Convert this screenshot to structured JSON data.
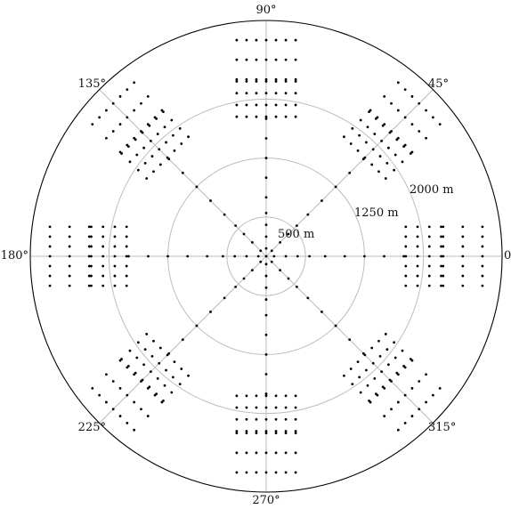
{
  "chart_data": {
    "type": "scatter",
    "coordinate_system": "polar",
    "title": "",
    "radial_unit": "m",
    "radial_max_m": 3000,
    "angle_tick_labels": [
      {
        "angle_deg": 0,
        "label": "0"
      },
      {
        "angle_deg": 45,
        "label": "45°"
      },
      {
        "angle_deg": 90,
        "label": "90°"
      },
      {
        "angle_deg": 135,
        "label": "135°"
      },
      {
        "angle_deg": 180,
        "label": "180°"
      },
      {
        "angle_deg": 225,
        "label": "225°"
      },
      {
        "angle_deg": 270,
        "label": "270°"
      },
      {
        "angle_deg": 315,
        "label": "315°"
      }
    ],
    "radial_circles": [
      {
        "radius_m": 500,
        "label": "500 m"
      },
      {
        "radius_m": 1250,
        "label": "1250 m"
      },
      {
        "radius_m": 2000,
        "label": "2000 m"
      }
    ],
    "grid": true,
    "angles_deg": [
      0,
      45,
      90,
      135,
      180,
      225,
      270,
      315
    ],
    "center_point": true,
    "spoke_points_radius_m": [
      100,
      250,
      400,
      550,
      750,
      1000,
      1250,
      1500,
      1750
    ],
    "grid_blocks": [
      {
        "center_radius_m": 2000,
        "along_offsets_m": [
          -225,
          -75,
          75,
          225
        ],
        "cross_offsets_m": [
          -375,
          -250,
          -125,
          0,
          125,
          250,
          375
        ]
      },
      {
        "center_radius_m": 2500,
        "along_offsets_m": [
          -250,
          0,
          250
        ],
        "cross_offsets_m": [
          -375,
          -250,
          -125,
          0,
          125,
          250,
          375
        ]
      }
    ]
  }
}
